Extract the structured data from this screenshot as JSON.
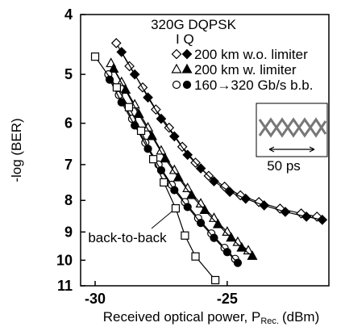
{
  "chart_data": {
    "type": "scatter-line",
    "xlabel": "Received optical power, P",
    "xlabel_sub": "Rec.",
    "xlabel_unit": "(dBm)",
    "ylabel": "-log (BER)",
    "xlim": [
      -30.55,
      -21.15
    ],
    "xticks": [
      -30,
      -25
    ],
    "ylim": [
      4,
      11
    ],
    "yticks": [
      4,
      5,
      6,
      7,
      8,
      9,
      10,
      11
    ],
    "y_scale": "log",
    "y_inverted": true,
    "legend_title": "320G DQPSK",
    "legend_columns": "I Q",
    "series": [
      {
        "name": "200 km w.o. limiter",
        "marker": "diamond",
        "color": "#000000",
        "I": {
          "x": [
            -29.2,
            -28.7,
            -28.2,
            -27.7,
            -27.2,
            -26.7,
            -26.2,
            -25.7,
            -25.1,
            -24.5,
            -23.8,
            -23.0,
            -22.2,
            -21.6
          ],
          "values": [
            4.45,
            4.85,
            5.25,
            5.7,
            6.1,
            6.55,
            6.95,
            7.3,
            7.6,
            7.85,
            8.05,
            8.25,
            8.4,
            8.5
          ]
        },
        "Q": {
          "x": [
            -29.0,
            -28.5,
            -28.0,
            -27.5,
            -27.0,
            -26.5,
            -26.0,
            -25.5,
            -24.9,
            -24.3,
            -23.6,
            -22.8,
            -22.0,
            -21.4
          ],
          "values": [
            4.6,
            5.0,
            5.45,
            5.9,
            6.3,
            6.75,
            7.1,
            7.45,
            7.75,
            7.95,
            8.15,
            8.35,
            8.5,
            8.6
          ]
        }
      },
      {
        "name": "200 km w. limiter",
        "marker": "triangle",
        "color": "#000000",
        "I": {
          "x": [
            -29.4,
            -29.0,
            -28.5,
            -28.0,
            -27.5,
            -27.0,
            -26.5,
            -26.0,
            -25.5,
            -25.0,
            -24.6,
            -24.2
          ],
          "values": [
            4.8,
            5.15,
            5.6,
            6.1,
            6.65,
            7.15,
            7.65,
            8.1,
            8.55,
            9.0,
            9.35,
            9.65
          ]
        },
        "Q": {
          "x": [
            -29.3,
            -28.85,
            -28.35,
            -27.85,
            -27.35,
            -26.85,
            -26.35,
            -25.85,
            -25.35,
            -24.85,
            -24.45,
            -24.05
          ],
          "values": [
            4.9,
            5.3,
            5.8,
            6.3,
            6.85,
            7.35,
            7.85,
            8.3,
            8.75,
            9.2,
            9.55,
            9.85
          ]
        }
      },
      {
        "name": "160→320 Gb/s b.b.",
        "marker": "circle",
        "color": "#000000",
        "I": {
          "x": [
            -29.5,
            -29.1,
            -28.6,
            -28.1,
            -27.6,
            -27.1,
            -26.6,
            -26.1,
            -25.6,
            -25.1,
            -24.7
          ],
          "values": [
            5.0,
            5.4,
            5.9,
            6.45,
            7.0,
            7.55,
            8.05,
            8.55,
            9.05,
            9.55,
            9.95
          ]
        },
        "Q": {
          "x": [
            -29.45,
            -29.0,
            -28.5,
            -28.0,
            -27.5,
            -27.0,
            -26.5,
            -26.0,
            -25.5,
            -25.0,
            -24.6
          ],
          "values": [
            5.1,
            5.55,
            6.05,
            6.6,
            7.15,
            7.7,
            8.2,
            8.7,
            9.2,
            9.7,
            10.1
          ]
        }
      }
    ],
    "reference": {
      "name": "back-to-back",
      "marker": "square",
      "color": "#000000",
      "x": [
        -30.0,
        -29.18,
        -28.72,
        -28.26,
        -27.8,
        -27.4,
        -26.95,
        -26.6,
        -26.2,
        -25.45
      ],
      "values": [
        4.68,
        5.25,
        5.65,
        6.17,
        6.86,
        7.48,
        8.24,
        9.12,
        9.86,
        10.77
      ]
    },
    "inset_label": "50 ps"
  }
}
